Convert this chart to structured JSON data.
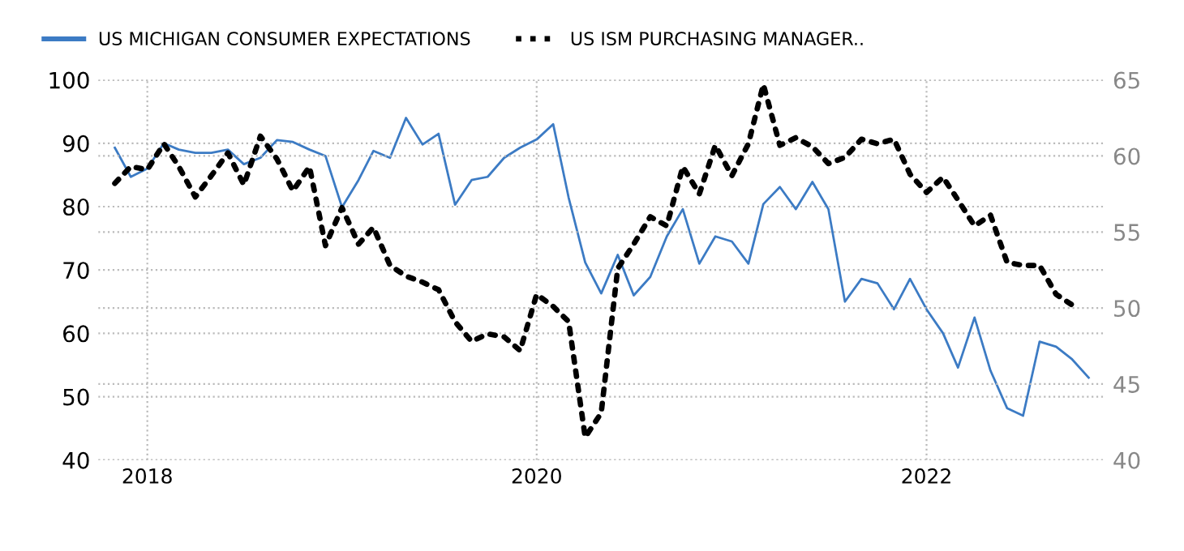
{
  "chart_data": {
    "type": "line",
    "x": [
      "2017-11",
      "2017-12",
      "2018-01",
      "2018-02",
      "2018-03",
      "2018-04",
      "2018-05",
      "2018-06",
      "2018-07",
      "2018-08",
      "2018-09",
      "2018-10",
      "2018-11",
      "2018-12",
      "2019-01",
      "2019-02",
      "2019-03",
      "2019-04",
      "2019-05",
      "2019-06",
      "2019-07",
      "2019-08",
      "2019-09",
      "2019-10",
      "2019-11",
      "2019-12",
      "2020-01",
      "2020-02",
      "2020-03",
      "2020-04",
      "2020-05",
      "2020-06",
      "2020-07",
      "2020-08",
      "2020-09",
      "2020-10",
      "2020-11",
      "2020-12",
      "2021-01",
      "2021-02",
      "2021-03",
      "2021-04",
      "2021-05",
      "2021-06",
      "2021-07",
      "2021-08",
      "2021-09",
      "2021-10",
      "2021-11",
      "2021-12",
      "2022-01",
      "2022-02",
      "2022-03",
      "2022-04",
      "2022-05",
      "2022-06",
      "2022-07",
      "2022-08",
      "2022-09",
      "2022-10",
      "2022-11"
    ],
    "series": [
      {
        "name": "US MICHIGAN CONSUMER EXPECTATIONS",
        "color": "#3c7bc4",
        "line_style": "solid",
        "values": [
          89.3,
          84.7,
          86,
          90,
          89,
          88.5,
          88.5,
          89,
          86.7,
          87.7,
          90.5,
          90.2,
          89,
          88,
          79.9,
          84.2,
          88.8,
          87.7,
          94,
          89.8,
          91.5,
          80.3,
          84.2,
          84.7,
          87.7,
          89.3,
          90.6,
          93,
          81.4,
          71.2,
          66.3,
          72.4,
          66,
          68.9,
          75.3,
          79.6,
          71,
          75.3,
          74.5,
          71,
          80.4,
          83.1,
          79.6,
          83.9,
          79.6,
          65,
          68.6,
          67.9,
          63.8,
          68.6,
          63.8,
          60,
          54.6,
          62.5,
          54.1,
          48.2,
          47,
          58.7,
          57.9,
          55.9,
          53
        ]
      },
      {
        "name": "US ISM PURCHASING MANAGER..",
        "color": "#000000",
        "line_style": "dotted",
        "axis": "y2",
        "values": [
          58.2,
          59.3,
          59.1,
          60.8,
          59.3,
          57.3,
          58.7,
          60.2,
          58.1,
          61.3,
          59.8,
          57.7,
          59.3,
          54.1,
          56.6,
          54.2,
          55.3,
          52.8,
          52.1,
          51.7,
          51.2,
          49.1,
          47.8,
          48.3,
          48.1,
          47.2,
          50.9,
          50.1,
          49.1,
          41.5,
          43.1,
          52.6,
          54.2,
          56,
          55.4,
          59.3,
          57.5,
          60.7,
          58.7,
          60.8,
          64.7,
          60.7,
          61.2,
          60.6,
          59.5,
          59.9,
          61.1,
          60.8,
          61.1,
          58.8,
          57.6,
          58.6,
          57.1,
          55.4,
          56.1,
          53,
          52.8,
          52.8,
          50.9,
          50.2,
          null
        ]
      }
    ],
    "xlim": [
      "2017-10",
      "2022-12"
    ],
    "xticks": [
      {
        "value": "2018-01",
        "label": "2018"
      },
      {
        "value": "2020-01",
        "label": "2020"
      },
      {
        "value": "2022-01",
        "label": "2022"
      }
    ],
    "ylim": [
      40,
      100
    ],
    "yticks": [
      40,
      50,
      60,
      70,
      80,
      90,
      100
    ],
    "y2lim": [
      40,
      65
    ],
    "y2ticks": [
      40,
      45,
      50,
      55,
      60,
      65
    ],
    "grid": true,
    "legend": "top left"
  }
}
